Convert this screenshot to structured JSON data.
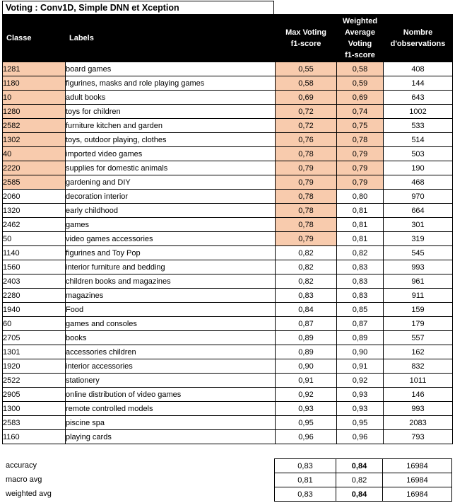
{
  "title": "Voting : Conv1D, Simple DNN et  Xception",
  "headers": {
    "classe": "Classe",
    "labels": "Labels",
    "max_voting": [
      "Max Voting",
      "f1-score"
    ],
    "weighted": [
      "Weighted",
      "Average",
      "Voting",
      "f1-score"
    ],
    "nombre": [
      "Nombre",
      "d'observations"
    ]
  },
  "highlight_color": "#f8cbad",
  "rows": [
    {
      "classe": "1281",
      "label": "board games",
      "max": "0,55",
      "weighted": "0,58",
      "n": "408",
      "hl_classe": true,
      "hl_max": true,
      "hl_weighted": true
    },
    {
      "classe": "1180",
      "label": "figurines, masks and role playing games",
      "max": "0,58",
      "weighted": "0,59",
      "n": "144",
      "hl_classe": true,
      "hl_max": true,
      "hl_weighted": true
    },
    {
      "classe": "10",
      "label": "adult books",
      "max": "0,69",
      "weighted": "0,69",
      "n": "643",
      "hl_classe": true,
      "hl_max": true,
      "hl_weighted": true
    },
    {
      "classe": "1280",
      "label": "toys for children",
      "max": "0,72",
      "weighted": "0,74",
      "n": "1002",
      "hl_classe": true,
      "hl_max": true,
      "hl_weighted": true
    },
    {
      "classe": "2582",
      "label": "furniture kitchen and garden",
      "max": "0,72",
      "weighted": "0,75",
      "n": "533",
      "hl_classe": true,
      "hl_max": true,
      "hl_weighted": true
    },
    {
      "classe": "1302",
      "label": "toys, outdoor playing, clothes",
      "max": "0,76",
      "weighted": "0,78",
      "n": "514",
      "hl_classe": true,
      "hl_max": true,
      "hl_weighted": true
    },
    {
      "classe": "40",
      "label": "imported video games",
      "max": "0,78",
      "weighted": "0,79",
      "n": "503",
      "hl_classe": true,
      "hl_max": true,
      "hl_weighted": true
    },
    {
      "classe": "2220",
      "label": "supplies for domestic animals",
      "max": "0,79",
      "weighted": "0,79",
      "n": "190",
      "hl_classe": true,
      "hl_max": true,
      "hl_weighted": true
    },
    {
      "classe": "2585",
      "label": "gardening and DIY",
      "max": "0,79",
      "weighted": "0,79",
      "n": "468",
      "hl_classe": true,
      "hl_max": true,
      "hl_weighted": true
    },
    {
      "classe": "2060",
      "label": "decoration interior",
      "max": "0,78",
      "weighted": "0,80",
      "n": "970",
      "hl_classe": false,
      "hl_max": true,
      "hl_weighted": false
    },
    {
      "classe": "1320",
      "label": "early childhood",
      "max": "0,78",
      "weighted": "0,81",
      "n": "664",
      "hl_classe": false,
      "hl_max": true,
      "hl_weighted": false
    },
    {
      "classe": "2462",
      "label": "games",
      "max": "0,78",
      "weighted": "0,81",
      "n": "301",
      "hl_classe": false,
      "hl_max": true,
      "hl_weighted": false
    },
    {
      "classe": "50",
      "label": "video games accessories",
      "max": "0,79",
      "weighted": "0,81",
      "n": "319",
      "hl_classe": false,
      "hl_max": true,
      "hl_weighted": false
    },
    {
      "classe": "1140",
      "label": "figurines and Toy Pop",
      "max": "0,82",
      "weighted": "0,82",
      "n": "545",
      "hl_classe": false,
      "hl_max": false,
      "hl_weighted": false
    },
    {
      "classe": "1560",
      "label": "interior furniture and bedding",
      "max": "0,82",
      "weighted": "0,83",
      "n": "993",
      "hl_classe": false,
      "hl_max": false,
      "hl_weighted": false
    },
    {
      "classe": "2403",
      "label": "children books and magazines",
      "max": "0,82",
      "weighted": "0,83",
      "n": "961",
      "hl_classe": false,
      "hl_max": false,
      "hl_weighted": false
    },
    {
      "classe": "2280",
      "label": "magazines",
      "max": "0,83",
      "weighted": "0,83",
      "n": "911",
      "hl_classe": false,
      "hl_max": false,
      "hl_weighted": false
    },
    {
      "classe": "1940",
      "label": "Food",
      "max": "0,84",
      "weighted": "0,85",
      "n": "159",
      "hl_classe": false,
      "hl_max": false,
      "hl_weighted": false
    },
    {
      "classe": "60",
      "label": "games and consoles",
      "max": "0,87",
      "weighted": "0,87",
      "n": "179",
      "hl_classe": false,
      "hl_max": false,
      "hl_weighted": false
    },
    {
      "classe": "2705",
      "label": "books",
      "max": "0,89",
      "weighted": "0,89",
      "n": "557",
      "hl_classe": false,
      "hl_max": false,
      "hl_weighted": false
    },
    {
      "classe": "1301",
      "label": "accessories children",
      "max": "0,89",
      "weighted": "0,90",
      "n": "162",
      "hl_classe": false,
      "hl_max": false,
      "hl_weighted": false
    },
    {
      "classe": "1920",
      "label": "interior accessories",
      "max": "0,90",
      "weighted": "0,91",
      "n": "832",
      "hl_classe": false,
      "hl_max": false,
      "hl_weighted": false
    },
    {
      "classe": "2522",
      "label": "stationery",
      "max": "0,91",
      "weighted": "0,92",
      "n": "1011",
      "hl_classe": false,
      "hl_max": false,
      "hl_weighted": false
    },
    {
      "classe": "2905",
      "label": "online distribution of video games",
      "max": "0,92",
      "weighted": "0,93",
      "n": "146",
      "hl_classe": false,
      "hl_max": false,
      "hl_weighted": false
    },
    {
      "classe": "1300",
      "label": "remote controlled models",
      "max": "0,93",
      "weighted": "0,93",
      "n": "993",
      "hl_classe": false,
      "hl_max": false,
      "hl_weighted": false
    },
    {
      "classe": "2583",
      "label": "piscine spa",
      "max": "0,95",
      "weighted": "0,95",
      "n": "2083",
      "hl_classe": false,
      "hl_max": false,
      "hl_weighted": false
    },
    {
      "classe": "1160",
      "label": "playing cards",
      "max": "0,96",
      "weighted": "0,96",
      "n": "793",
      "hl_classe": false,
      "hl_max": false,
      "hl_weighted": false
    }
  ],
  "summary": [
    {
      "label": "accuracy",
      "max": "0,83",
      "weighted": "0,84",
      "n": "16984",
      "weighted_bold": true
    },
    {
      "label": "macro avg",
      "max": "0,81",
      "weighted": "0,82",
      "n": "16984",
      "weighted_bold": false
    },
    {
      "label": "weighted avg",
      "max": "0,83",
      "weighted": "0,84",
      "n": "16984",
      "weighted_bold": true
    }
  ]
}
